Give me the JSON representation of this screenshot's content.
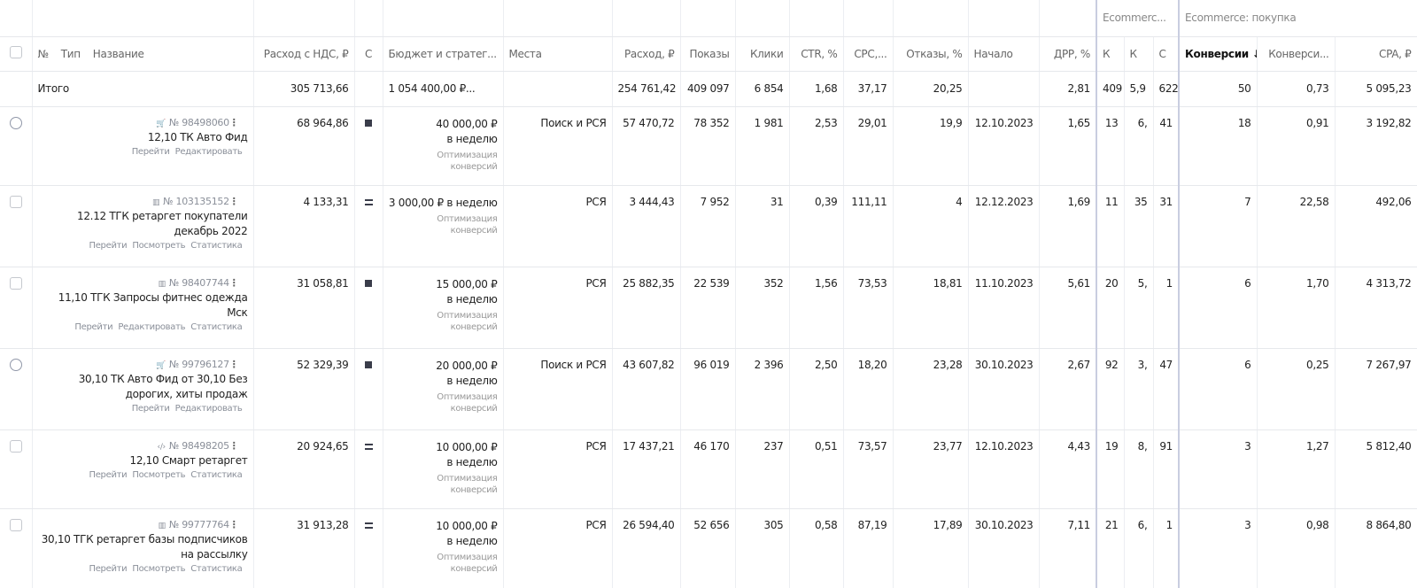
{
  "group_headers": {
    "ecommerce": "Ecommerc...",
    "purchase": "Ecommerce: покупка"
  },
  "headers": {
    "num": "№",
    "type": "Тип",
    "name": "Название",
    "spend_vat": "Расход с НДС, ₽",
    "status": "С",
    "budget": "Бюджет и стратег...",
    "places": "Места",
    "spend": "Расход, ₽",
    "impressions": "Показы",
    "clicks": "Клики",
    "ctr": "CTR, %",
    "cpc": "CPC,...",
    "bounces": "Отказы, %",
    "start": "Начало",
    "drr": "ДРР, %",
    "k1": "К",
    "k2": "К",
    "c": "С",
    "conversions": "Конверсии ↓",
    "conv_rate": "Конверси...",
    "cpa": "CPA, ₽"
  },
  "total": {
    "label": "Итого",
    "spend_vat": "305 713,66",
    "budget": "1 054 400,00 ₽...",
    "spend": "254 761,42",
    "impressions": "409 097",
    "clicks": "6 854",
    "ctr": "1,68",
    "cpc": "37,17",
    "bounces": "20,25",
    "drr": "2,81",
    "k1": "409",
    "k2": "5,9",
    "c": "622",
    "conversions": "50",
    "conv_rate": "0,73",
    "cpa": "5 095,23"
  },
  "rows": [
    {
      "id": "№ 98498060",
      "name": "12,10 ТК Авто Фид",
      "links": [
        "Перейти",
        "Редактировать"
      ],
      "spend_vat": "68 964,86",
      "budget": [
        "40 000,00 ₽",
        "в неделю"
      ],
      "strategy": "Оптимизация конверсий",
      "places": "Поиск и РСЯ",
      "spend": "57 470,72",
      "impressions": "78 352",
      "clicks": "1 981",
      "ctr": "2,53",
      "cpc": "29,01",
      "bounces": "19,9",
      "start": "12.10.2023",
      "drr": "1,65",
      "k1": "13",
      "k2": "6,",
      "c": "41",
      "conversions": "18",
      "conv_rate": "0,91",
      "cpa": "3 192,82"
    },
    {
      "id": "№ 103135152",
      "name": "12.12 ТГК ретаргет покупатели декабрь 2022",
      "links": [
        "Перейти",
        "Посмотреть",
        "Статистика"
      ],
      "spend_vat": "4 133,31",
      "budget": [
        "3 000,00 ₽ в неделю"
      ],
      "strategy": "Оптимизация конверсий",
      "places": "РСЯ",
      "spend": "3 444,43",
      "impressions": "7 952",
      "clicks": "31",
      "ctr": "0,39",
      "cpc": "111,11",
      "bounces": "4",
      "start": "12.12.2023",
      "drr": "1,69",
      "k1": "11",
      "k2": "35",
      "c": "31",
      "conversions": "7",
      "conv_rate": "22,58",
      "cpa": "492,06"
    },
    {
      "id": "№ 98407744",
      "name": "11,10 ТГК Запросы фитнес одежда Мск",
      "links": [
        "Перейти",
        "Редактировать",
        "Статистика"
      ],
      "spend_vat": "31 058,81",
      "budget": [
        "15 000,00 ₽",
        "в неделю"
      ],
      "strategy": "Оптимизация конверсий",
      "places": "РСЯ",
      "spend": "25 882,35",
      "impressions": "22 539",
      "clicks": "352",
      "ctr": "1,56",
      "cpc": "73,53",
      "bounces": "18,81",
      "start": "11.10.2023",
      "drr": "5,61",
      "k1": "20",
      "k2": "5,",
      "c": "1",
      "conversions": "6",
      "conv_rate": "1,70",
      "cpa": "4 313,72"
    },
    {
      "id": "№ 99796127",
      "name": "30,10 ТК Авто Фид от 30,10 Без дорогих, хиты продаж",
      "links": [
        "Перейти",
        "Редактировать"
      ],
      "spend_vat": "52 329,39",
      "budget": [
        "20 000,00 ₽",
        "в неделю"
      ],
      "strategy": "Оптимизация конверсий",
      "places": "Поиск и РСЯ",
      "spend": "43 607,82",
      "impressions": "96 019",
      "clicks": "2 396",
      "ctr": "2,50",
      "cpc": "18,20",
      "bounces": "23,28",
      "start": "30.10.2023",
      "drr": "2,67",
      "k1": "92",
      "k2": "3,",
      "c": "47",
      "conversions": "6",
      "conv_rate": "0,25",
      "cpa": "7 267,97"
    },
    {
      "id": "№ 98498205",
      "name": "12,10 Смарт ретаргет",
      "links": [
        "Перейти",
        "Посмотреть",
        "Статистика"
      ],
      "spend_vat": "20 924,65",
      "budget": [
        "10 000,00 ₽",
        "в неделю"
      ],
      "strategy": "Оптимизация конверсий",
      "places": "РСЯ",
      "spend": "17 437,21",
      "impressions": "46 170",
      "clicks": "237",
      "ctr": "0,51",
      "cpc": "73,57",
      "bounces": "23,77",
      "start": "12.10.2023",
      "drr": "4,43",
      "k1": "19",
      "k2": "8,",
      "c": "91",
      "conversions": "3",
      "conv_rate": "1,27",
      "cpa": "5 812,40"
    },
    {
      "id": "№ 99777764",
      "name": "30,10 ТГК ретаргет базы подписчиков на рассылку",
      "links": [
        "Перейти",
        "Посмотреть",
        "Статистика"
      ],
      "spend_vat": "31 913,28",
      "budget": [
        "10 000,00 ₽",
        "в неделю"
      ],
      "strategy": "Оптимизация конверсий",
      "places": "РСЯ",
      "spend": "26 594,40",
      "impressions": "52 656",
      "clicks": "305",
      "ctr": "0,58",
      "cpc": "87,19",
      "bounces": "17,89",
      "start": "30.10.2023",
      "drr": "7,11",
      "k1": "21",
      "k2": "6,",
      "c": "1",
      "conversions": "3",
      "conv_rate": "0,98",
      "cpa": "8 864,80"
    }
  ]
}
